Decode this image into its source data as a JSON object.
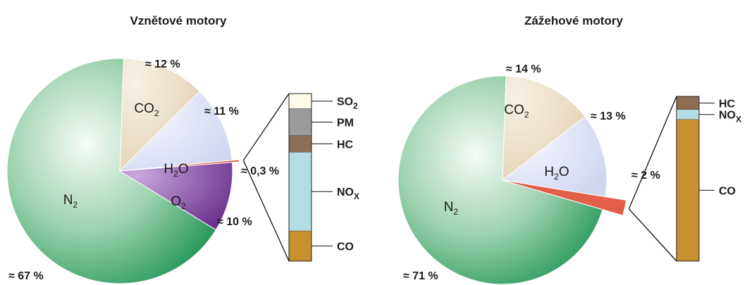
{
  "chart_data": [
    {
      "type": "pie",
      "title": "Vznětové motory",
      "slices": [
        {
          "name": "N2",
          "label_main": "N",
          "label_sub": "2",
          "value": 67,
          "value_label": "≈ 67 %",
          "color": "#43a96a"
        },
        {
          "name": "CO2",
          "label_main": "CO",
          "label_sub": "2",
          "value": 12,
          "value_label": "≈ 12 %",
          "color": "#e7dcc4"
        },
        {
          "name": "H2O",
          "label_main": "H",
          "label_sub": "2",
          "label_tail": "O",
          "value": 11,
          "value_label": "≈ 11 %",
          "color": "#dfe3f5"
        },
        {
          "name": "minor",
          "value": 0.3,
          "value_label": "≈ 0,3 %",
          "color": "#e2604a"
        },
        {
          "name": "O2",
          "label_main": "O",
          "label_sub": "2",
          "value": 10,
          "value_label": "≈ 10 %",
          "color": "#8a4fa8"
        }
      ],
      "breakdown": [
        {
          "name": "SO2",
          "label_main": "SO",
          "label_sub": "2",
          "color": "#fffbea",
          "share": 0.09
        },
        {
          "name": "PM",
          "label_main": "PM",
          "label_sub": "",
          "color": "#9b9b9b",
          "share": 0.16
        },
        {
          "name": "HC",
          "label_main": "HC",
          "label_sub": "",
          "color": "#8c6e54",
          "share": 0.1
        },
        {
          "name": "NOx",
          "label_main": "NO",
          "label_sub": "X",
          "color": "#b4dde3",
          "share": 0.47
        },
        {
          "name": "CO",
          "label_main": "CO",
          "label_sub": "",
          "color": "#c8902f",
          "share": 0.18
        }
      ]
    },
    {
      "type": "pie",
      "title": "Zážehové motory",
      "slices": [
        {
          "name": "N2",
          "label_main": "N",
          "label_sub": "2",
          "value": 71,
          "value_label": "≈ 71 %",
          "color": "#43a96a"
        },
        {
          "name": "CO2",
          "label_main": "CO",
          "label_sub": "2",
          "value": 14,
          "value_label": "≈ 14 %",
          "color": "#e7dcc4"
        },
        {
          "name": "H2O",
          "label_main": "H",
          "label_sub": "2",
          "label_tail": "O",
          "value": 13,
          "value_label": "≈ 13 %",
          "color": "#dfe3f5"
        },
        {
          "name": "minor",
          "value": 2,
          "value_label": "≈ 2 %",
          "color": "#e2604a"
        }
      ],
      "breakdown": [
        {
          "name": "HC",
          "label_main": "HC",
          "label_sub": "",
          "color": "#8c6e54",
          "share": 0.08
        },
        {
          "name": "NOx",
          "label_main": "NO",
          "label_sub": "X",
          "color": "#b4dde3",
          "share": 0.06
        },
        {
          "name": "CO",
          "label_main": "CO",
          "label_sub": "",
          "color": "#c8902f",
          "share": 0.86
        }
      ]
    }
  ]
}
